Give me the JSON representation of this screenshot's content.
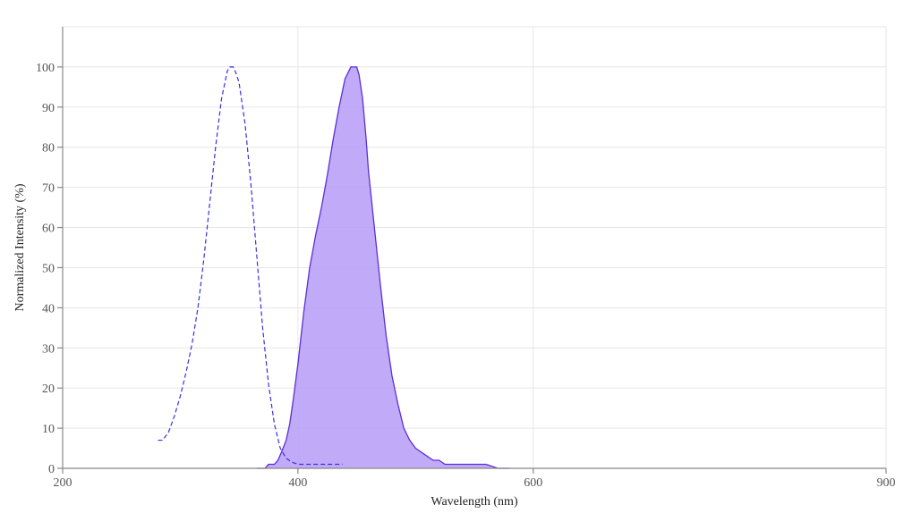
{
  "chart_data": {
    "type": "area",
    "xlabel": "Wavelength (nm)",
    "ylabel": "Normalized Intensity (%)",
    "xlim": [
      200,
      900
    ],
    "ylim": [
      0,
      110
    ],
    "x_ticks": [
      200,
      400,
      600,
      900
    ],
    "x_gridlines": [
      400,
      600,
      900
    ],
    "y_ticks": [
      0,
      10,
      20,
      30,
      40,
      50,
      60,
      70,
      80,
      90,
      100
    ],
    "grid": true,
    "legend": "none",
    "colors": {
      "excitation": "#3a2fe6",
      "emission_line": "#5b2fd6",
      "emission_fill": "#b69cf7"
    },
    "series": [
      {
        "style": "dashed-line",
        "x": [
          281,
          285,
          290,
          295,
          300,
          305,
          310,
          315,
          320,
          325,
          330,
          335,
          340,
          342,
          345,
          348,
          350,
          355,
          360,
          365,
          370,
          375,
          380,
          385,
          390,
          395,
          400,
          410,
          420,
          430,
          438
        ],
        "y": [
          7,
          7,
          9,
          13,
          18,
          24,
          31,
          40,
          52,
          66,
          80,
          92,
          99,
          100,
          100,
          98,
          96,
          86,
          71,
          53,
          35,
          21,
          11,
          5,
          2.5,
          1.5,
          1,
          1,
          1,
          1,
          1
        ]
      },
      {
        "style": "filled-area",
        "x": [
          365,
          372,
          375,
          378,
          380,
          383,
          386,
          390,
          393,
          396,
          400,
          405,
          410,
          415,
          420,
          425,
          430,
          435,
          440,
          445,
          450,
          452,
          455,
          458,
          460,
          465,
          470,
          475,
          480,
          485,
          490,
          495,
          500,
          505,
          510,
          515,
          520,
          525,
          530,
          535,
          540,
          545,
          550,
          560,
          570,
          575,
          580
        ],
        "y": [
          0,
          0,
          1,
          1,
          1,
          2,
          4,
          7,
          11,
          17,
          26,
          39,
          50,
          58,
          65,
          73,
          82,
          90,
          97,
          100,
          100,
          98,
          92,
          82,
          74,
          60,
          46,
          33,
          23,
          16,
          10,
          7,
          5,
          4,
          3,
          2,
          2,
          1,
          1,
          1,
          1,
          1,
          1,
          1,
          0,
          0,
          0
        ]
      }
    ]
  }
}
